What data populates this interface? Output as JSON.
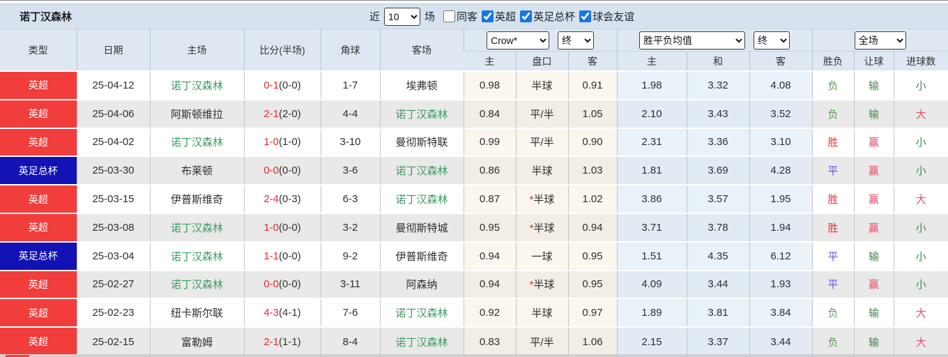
{
  "title_bar": {
    "title": "诺丁汉森林",
    "recent_label": "近",
    "recent_select_value": "10",
    "matches_label": "场",
    "filters": [
      {
        "label": "同客",
        "checked": false
      },
      {
        "label": "英超",
        "checked": true
      },
      {
        "label": "英足总杯",
        "checked": true
      },
      {
        "label": "球会友谊",
        "checked": true
      }
    ]
  },
  "table": {
    "left_headers": [
      "类型",
      "日期",
      "主场",
      "比分(半场)",
      "角球",
      "客场"
    ],
    "select_labels": {
      "bookmaker": "Crow*",
      "crow_time": "终",
      "avg_type": "胜平负均值",
      "avg_time": "终",
      "scope": "全场"
    },
    "sub_headers": [
      "主",
      "盘口",
      "客",
      "主",
      "和",
      "客",
      "胜负",
      "让球",
      "进球数"
    ],
    "rows": [
      {
        "type": "英超",
        "type_color": "red",
        "date": "25-04-12",
        "home": "诺丁汉森林",
        "score_ft": "0-1",
        "score_ht": "(0-0)",
        "corner": "1-7",
        "away": "埃弗顿",
        "crow_home": "0.98",
        "handicap_star": "",
        "handicap": "半球",
        "crow_away": "0.91",
        "avg_home": "1.98",
        "avg_draw": "3.32",
        "avg_away": "4.08",
        "result": "负",
        "handicap_result": "输",
        "goals_result": "小"
      },
      {
        "type": "英超",
        "type_color": "red",
        "date": "25-04-06",
        "home": "阿斯顿维拉",
        "score_ft": "2-1",
        "score_ht": "(2-0)",
        "corner": "4-4",
        "away": "诺丁汉森林",
        "crow_home": "0.84",
        "handicap_star": "",
        "handicap": "平/半",
        "crow_away": "1.05",
        "avg_home": "2.10",
        "avg_draw": "3.43",
        "avg_away": "3.52",
        "result": "负",
        "handicap_result": "输",
        "goals_result": "大"
      },
      {
        "type": "英超",
        "type_color": "red",
        "date": "25-04-02",
        "home": "诺丁汉森林",
        "score_ft": "1-0",
        "score_ht": "(1-0)",
        "corner": "3-10",
        "away": "曼彻斯特联",
        "crow_home": "0.99",
        "handicap_star": "",
        "handicap": "平/半",
        "crow_away": "0.90",
        "avg_home": "2.31",
        "avg_draw": "3.36",
        "avg_away": "3.10",
        "result": "胜",
        "handicap_result": "赢",
        "goals_result": "小"
      },
      {
        "type": "英足总杯",
        "type_color": "blue",
        "date": "25-03-30",
        "home": "布莱顿",
        "score_ft": "0-0",
        "score_ht": "(0-0)",
        "corner": "3-6",
        "away": "诺丁汉森林",
        "crow_home": "0.86",
        "handicap_star": "",
        "handicap": "半球",
        "crow_away": "1.03",
        "avg_home": "1.81",
        "avg_draw": "3.69",
        "avg_away": "4.28",
        "result": "平",
        "handicap_result": "赢",
        "goals_result": "小"
      },
      {
        "type": "英超",
        "type_color": "red",
        "date": "25-03-15",
        "home": "伊普斯维奇",
        "score_ft": "2-4",
        "score_ht": "(0-3)",
        "corner": "6-3",
        "away": "诺丁汉森林",
        "crow_home": "0.87",
        "handicap_star": "*",
        "handicap": "半球",
        "crow_away": "1.02",
        "avg_home": "3.86",
        "avg_draw": "3.57",
        "avg_away": "1.95",
        "result": "胜",
        "handicap_result": "赢",
        "goals_result": "大"
      },
      {
        "type": "英超",
        "type_color": "red",
        "date": "25-03-08",
        "home": "诺丁汉森林",
        "score_ft": "1-0",
        "score_ht": "(0-0)",
        "corner": "3-2",
        "away": "曼彻斯特城",
        "crow_home": "0.95",
        "handicap_star": "*",
        "handicap": "半球",
        "crow_away": "0.94",
        "avg_home": "3.71",
        "avg_draw": "3.78",
        "avg_away": "1.94",
        "result": "胜",
        "handicap_result": "赢",
        "goals_result": "小"
      },
      {
        "type": "英足总杯",
        "type_color": "blue",
        "date": "25-03-04",
        "home": "诺丁汉森林",
        "score_ft": "1-1",
        "score_ht": "(0-0)",
        "corner": "9-2",
        "away": "伊普斯维奇",
        "crow_home": "0.94",
        "handicap_star": "",
        "handicap": "一球",
        "crow_away": "0.95",
        "avg_home": "1.51",
        "avg_draw": "4.35",
        "avg_away": "6.12",
        "result": "平",
        "handicap_result": "输",
        "goals_result": "小"
      },
      {
        "type": "英超",
        "type_color": "red",
        "date": "25-02-27",
        "home": "诺丁汉森林",
        "score_ft": "0-0",
        "score_ht": "(0-0)",
        "corner": "3-11",
        "away": "阿森纳",
        "crow_home": "0.94",
        "handicap_star": "*",
        "handicap": "半球",
        "crow_away": "0.95",
        "avg_home": "4.09",
        "avg_draw": "3.44",
        "avg_away": "1.93",
        "result": "平",
        "handicap_result": "赢",
        "goals_result": "小"
      },
      {
        "type": "英超",
        "type_color": "red",
        "date": "25-02-23",
        "home": "纽卡斯尔联",
        "score_ft": "4-3",
        "score_ht": "(4-1)",
        "corner": "7-6",
        "away": "诺丁汉森林",
        "crow_home": "0.92",
        "handicap_star": "",
        "handicap": "半球",
        "crow_away": "0.97",
        "avg_home": "1.89",
        "avg_draw": "3.81",
        "avg_away": "3.84",
        "result": "负",
        "handicap_result": "输",
        "goals_result": "大"
      },
      {
        "type": "英超",
        "type_color": "red",
        "date": "25-02-15",
        "home": "富勒姆",
        "score_ft": "2-1",
        "score_ht": "(1-1)",
        "corner": "8-4",
        "away": "诺丁汉森林",
        "crow_home": "0.83",
        "handicap_star": "",
        "handicap": "平/半",
        "crow_away": "1.06",
        "avg_home": "2.15",
        "avg_draw": "3.37",
        "avg_away": "3.44",
        "result": "负",
        "handicap_result": "输",
        "goals_result": "大"
      }
    ]
  },
  "value_colors": {
    "胜": "#e93345",
    "平": "#5b51e0",
    "负": "#5e9b57",
    "赢": "#ee4763",
    "输": "#47824f",
    "大": "#e24f68",
    "小": "#3f8a52"
  },
  "accent_colors": {
    "league-red": "#f23d3d",
    "league-blue": "#1212b5",
    "self-team-green": "#3f9a63",
    "score-red": "#e62a2a",
    "checkbox-blue": "#1577e6"
  }
}
